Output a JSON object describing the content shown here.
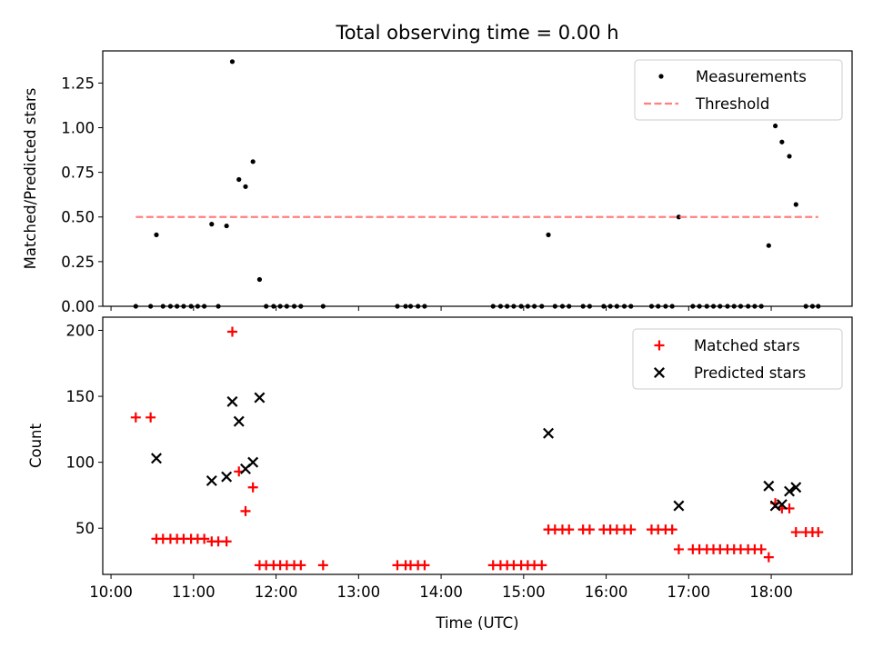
{
  "figure_title": "Total observing time = 0.00 h",
  "chart_data": [
    {
      "type": "scatter",
      "ylabel": "Matched/Predicted stars",
      "xlabel": "",
      "ylim": [
        0,
        1.43
      ],
      "yticks": [
        "0.00",
        "0.25",
        "0.50",
        "0.75",
        "1.00",
        "1.25"
      ],
      "ytick_values": [
        0,
        0.25,
        0.5,
        0.75,
        1.0,
        1.25
      ],
      "xlim_hours": [
        9.9,
        18.98
      ],
      "legend_position": "upper right",
      "series": [
        {
          "name": "Measurements",
          "color": "#000000",
          "marker": "dot",
          "points": [
            [
              10.3,
              0
            ],
            [
              10.48,
              0
            ],
            [
              10.55,
              0.4
            ],
            [
              10.63,
              0
            ],
            [
              10.72,
              0
            ],
            [
              10.8,
              0
            ],
            [
              10.88,
              0
            ],
            [
              10.97,
              0
            ],
            [
              11.05,
              0
            ],
            [
              11.13,
              0
            ],
            [
              11.22,
              0.46
            ],
            [
              11.3,
              0
            ],
            [
              11.4,
              0.45
            ],
            [
              11.47,
              1.37
            ],
            [
              11.55,
              0.71
            ],
            [
              11.63,
              0.67
            ],
            [
              11.72,
              0.81
            ],
            [
              11.8,
              0.15
            ],
            [
              11.88,
              0
            ],
            [
              11.97,
              0
            ],
            [
              12.05,
              0
            ],
            [
              12.13,
              0
            ],
            [
              12.22,
              0
            ],
            [
              12.3,
              0
            ],
            [
              12.57,
              0
            ],
            [
              13.47,
              0
            ],
            [
              13.57,
              0
            ],
            [
              13.63,
              0
            ],
            [
              13.72,
              0
            ],
            [
              13.8,
              0
            ],
            [
              14.63,
              0
            ],
            [
              14.72,
              0
            ],
            [
              14.8,
              0
            ],
            [
              14.88,
              0
            ],
            [
              14.97,
              0
            ],
            [
              15.05,
              0
            ],
            [
              15.13,
              0
            ],
            [
              15.22,
              0
            ],
            [
              15.3,
              0.4
            ],
            [
              15.38,
              0
            ],
            [
              15.47,
              0
            ],
            [
              15.55,
              0
            ],
            [
              15.72,
              0
            ],
            [
              15.8,
              0
            ],
            [
              15.97,
              0
            ],
            [
              16.05,
              0
            ],
            [
              16.13,
              0
            ],
            [
              16.22,
              0
            ],
            [
              16.3,
              0
            ],
            [
              16.55,
              0
            ],
            [
              16.63,
              0
            ],
            [
              16.72,
              0
            ],
            [
              16.8,
              0
            ],
            [
              16.88,
              0.5
            ],
            [
              17.05,
              0
            ],
            [
              17.13,
              0
            ],
            [
              17.22,
              0
            ],
            [
              17.3,
              0
            ],
            [
              17.38,
              0
            ],
            [
              17.47,
              0
            ],
            [
              17.55,
              0
            ],
            [
              17.63,
              0
            ],
            [
              17.72,
              0
            ],
            [
              17.8,
              0
            ],
            [
              17.88,
              0
            ],
            [
              17.97,
              0.34
            ],
            [
              18.05,
              1.01
            ],
            [
              18.13,
              0.92
            ],
            [
              18.22,
              0.84
            ],
            [
              18.3,
              0.57
            ],
            [
              18.42,
              0
            ],
            [
              18.5,
              0
            ],
            [
              18.57,
              0
            ]
          ]
        },
        {
          "name": "Threshold",
          "color": "#ff8080",
          "style": "dashed",
          "points": [
            [
              10.3,
              0.5
            ],
            [
              18.57,
              0.5
            ]
          ]
        }
      ]
    },
    {
      "type": "scatter",
      "ylabel": "Count",
      "xlabel": "Time (UTC)",
      "ylim": [
        15,
        210
      ],
      "yticks": [
        "50",
        "100",
        "150",
        "200"
      ],
      "ytick_values": [
        50,
        100,
        150,
        200
      ],
      "xlim_hours": [
        9.9,
        18.98
      ],
      "xticks": [
        "10:00",
        "11:00",
        "12:00",
        "13:00",
        "14:00",
        "15:00",
        "16:00",
        "17:00",
        "18:00"
      ],
      "xtick_values": [
        10,
        11,
        12,
        13,
        14,
        15,
        16,
        17,
        18
      ],
      "legend_position": "upper right",
      "series": [
        {
          "name": "Matched stars",
          "color": "#ff0000",
          "marker": "plus",
          "points": [
            [
              10.3,
              134
            ],
            [
              10.48,
              134
            ],
            [
              10.55,
              42
            ],
            [
              10.63,
              42
            ],
            [
              10.72,
              42
            ],
            [
              10.8,
              42
            ],
            [
              10.88,
              42
            ],
            [
              10.97,
              42
            ],
            [
              11.05,
              42
            ],
            [
              11.13,
              42
            ],
            [
              11.22,
              40
            ],
            [
              11.3,
              40
            ],
            [
              11.4,
              40
            ],
            [
              11.47,
              199
            ],
            [
              11.55,
              93
            ],
            [
              11.63,
              63
            ],
            [
              11.72,
              81
            ],
            [
              11.8,
              22
            ],
            [
              11.88,
              22
            ],
            [
              11.97,
              22
            ],
            [
              12.05,
              22
            ],
            [
              12.13,
              22
            ],
            [
              12.22,
              22
            ],
            [
              12.3,
              22
            ],
            [
              12.57,
              22
            ],
            [
              13.47,
              22
            ],
            [
              13.57,
              22
            ],
            [
              13.63,
              22
            ],
            [
              13.72,
              22
            ],
            [
              13.8,
              22
            ],
            [
              14.63,
              22
            ],
            [
              14.72,
              22
            ],
            [
              14.8,
              22
            ],
            [
              14.88,
              22
            ],
            [
              14.97,
              22
            ],
            [
              15.05,
              22
            ],
            [
              15.13,
              22
            ],
            [
              15.22,
              22
            ],
            [
              15.3,
              49
            ],
            [
              15.38,
              49
            ],
            [
              15.47,
              49
            ],
            [
              15.55,
              49
            ],
            [
              15.72,
              49
            ],
            [
              15.8,
              49
            ],
            [
              15.97,
              49
            ],
            [
              16.05,
              49
            ],
            [
              16.13,
              49
            ],
            [
              16.22,
              49
            ],
            [
              16.3,
              49
            ],
            [
              16.55,
              49
            ],
            [
              16.63,
              49
            ],
            [
              16.72,
              49
            ],
            [
              16.8,
              49
            ],
            [
              16.88,
              34
            ],
            [
              17.05,
              34
            ],
            [
              17.13,
              34
            ],
            [
              17.22,
              34
            ],
            [
              17.3,
              34
            ],
            [
              17.38,
              34
            ],
            [
              17.47,
              34
            ],
            [
              17.55,
              34
            ],
            [
              17.63,
              34
            ],
            [
              17.72,
              34
            ],
            [
              17.8,
              34
            ],
            [
              17.88,
              34
            ],
            [
              17.97,
              28
            ],
            [
              18.05,
              69
            ],
            [
              18.13,
              65
            ],
            [
              18.22,
              65
            ],
            [
              18.3,
              47
            ],
            [
              18.42,
              47
            ],
            [
              18.5,
              47
            ],
            [
              18.57,
              47
            ]
          ]
        },
        {
          "name": "Predicted stars",
          "color": "#000000",
          "marker": "x",
          "points": [
            [
              10.55,
              103
            ],
            [
              11.22,
              86
            ],
            [
              11.4,
              89
            ],
            [
              11.47,
              146
            ],
            [
              11.55,
              131
            ],
            [
              11.63,
              95
            ],
            [
              11.72,
              100
            ],
            [
              11.8,
              149
            ],
            [
              15.3,
              122
            ],
            [
              16.88,
              67
            ],
            [
              17.97,
              82
            ],
            [
              18.05,
              67
            ],
            [
              18.13,
              68
            ],
            [
              18.22,
              78
            ],
            [
              18.3,
              81
            ]
          ]
        }
      ]
    }
  ]
}
